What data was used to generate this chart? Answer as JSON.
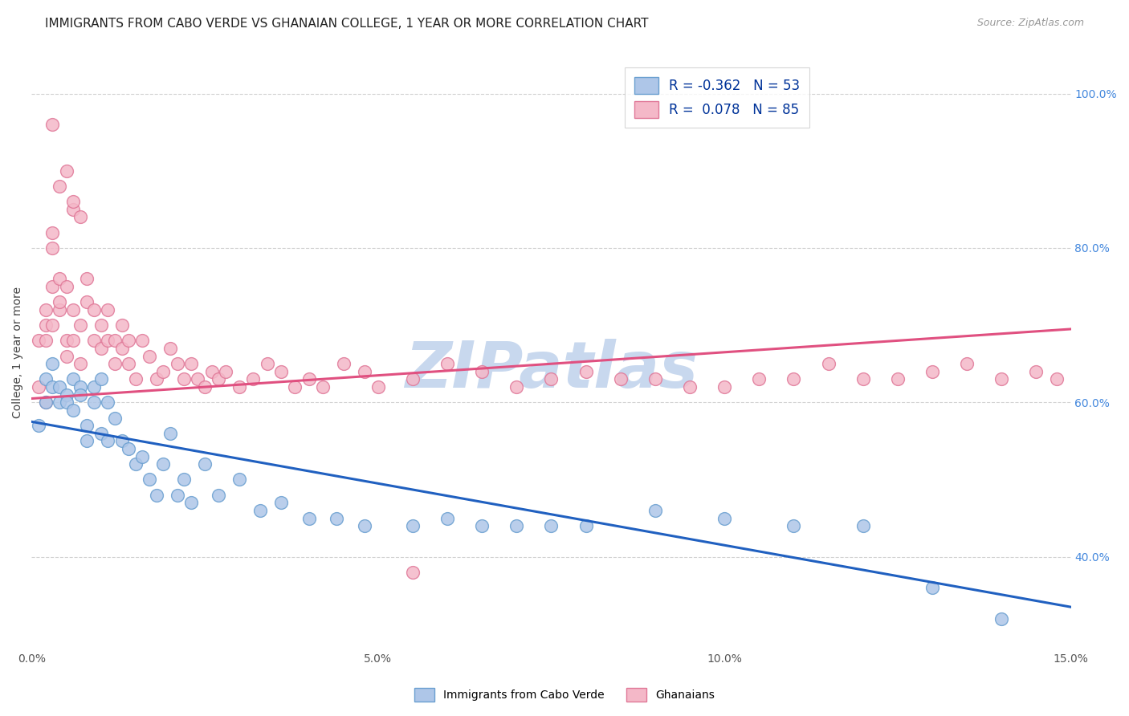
{
  "title": "IMMIGRANTS FROM CABO VERDE VS GHANAIAN COLLEGE, 1 YEAR OR MORE CORRELATION CHART",
  "source": "Source: ZipAtlas.com",
  "ylabel_label": "College, 1 year or more",
  "xlim": [
    0.0,
    0.15
  ],
  "ylim": [
    0.28,
    1.05
  ],
  "ytick_vals": [
    0.4,
    0.6,
    0.8,
    1.0
  ],
  "ytick_labels": [
    "40.0%",
    "60.0%",
    "80.0%",
    "100.0%"
  ],
  "xtick_vals": [
    0.0,
    0.05,
    0.1,
    0.15
  ],
  "xtick_labels": [
    "0.0%",
    "5.0%",
    "10.0%",
    "15.0%"
  ],
  "legend_label_cv": "R = -0.362   N = 53",
  "legend_label_gh": "R =  0.078   N = 85",
  "legend_r_color": "#003399",
  "cabo_verde_color": "#aec6e8",
  "cabo_verde_edge": "#6a9fd0",
  "ghanaian_color": "#f4b8c8",
  "ghanaian_edge": "#e07898",
  "cabo_verde_line_color": "#2060c0",
  "ghanaian_line_color": "#e05080",
  "watermark": "ZIPatlas",
  "watermark_color": "#c8d8ee",
  "cabo_verde_trend_x": [
    0.0,
    0.15
  ],
  "cabo_verde_trend_y": [
    0.575,
    0.335
  ],
  "ghanaian_trend_x": [
    0.0,
    0.15
  ],
  "ghanaian_trend_y": [
    0.605,
    0.695
  ],
  "background_color": "#ffffff",
  "grid_color": "#cccccc",
  "title_fontsize": 11,
  "axis_label_fontsize": 10,
  "tick_fontsize": 10,
  "source_fontsize": 9,
  "cabo_verde_x": [
    0.001,
    0.002,
    0.002,
    0.003,
    0.003,
    0.004,
    0.004,
    0.005,
    0.005,
    0.006,
    0.006,
    0.007,
    0.007,
    0.008,
    0.008,
    0.009,
    0.009,
    0.01,
    0.01,
    0.011,
    0.011,
    0.012,
    0.013,
    0.014,
    0.015,
    0.016,
    0.017,
    0.018,
    0.019,
    0.02,
    0.021,
    0.022,
    0.023,
    0.025,
    0.027,
    0.03,
    0.033,
    0.036,
    0.04,
    0.044,
    0.048,
    0.055,
    0.06,
    0.065,
    0.07,
    0.075,
    0.08,
    0.09,
    0.1,
    0.11,
    0.12,
    0.13,
    0.14
  ],
  "cabo_verde_y": [
    0.57,
    0.6,
    0.63,
    0.62,
    0.65,
    0.6,
    0.62,
    0.61,
    0.6,
    0.63,
    0.59,
    0.62,
    0.61,
    0.57,
    0.55,
    0.62,
    0.6,
    0.63,
    0.56,
    0.55,
    0.6,
    0.58,
    0.55,
    0.54,
    0.52,
    0.53,
    0.5,
    0.48,
    0.52,
    0.56,
    0.48,
    0.5,
    0.47,
    0.52,
    0.48,
    0.5,
    0.46,
    0.47,
    0.45,
    0.45,
    0.44,
    0.44,
    0.45,
    0.44,
    0.44,
    0.44,
    0.44,
    0.46,
    0.45,
    0.44,
    0.44,
    0.36,
    0.32
  ],
  "ghanaian_x": [
    0.001,
    0.001,
    0.002,
    0.002,
    0.002,
    0.003,
    0.003,
    0.003,
    0.004,
    0.004,
    0.004,
    0.005,
    0.005,
    0.006,
    0.006,
    0.006,
    0.007,
    0.007,
    0.008,
    0.008,
    0.009,
    0.009,
    0.01,
    0.01,
    0.011,
    0.011,
    0.012,
    0.012,
    0.013,
    0.013,
    0.014,
    0.014,
    0.015,
    0.016,
    0.017,
    0.018,
    0.019,
    0.02,
    0.021,
    0.022,
    0.023,
    0.024,
    0.025,
    0.026,
    0.027,
    0.028,
    0.03,
    0.032,
    0.034,
    0.036,
    0.038,
    0.04,
    0.042,
    0.045,
    0.048,
    0.05,
    0.055,
    0.06,
    0.065,
    0.07,
    0.075,
    0.08,
    0.085,
    0.09,
    0.095,
    0.1,
    0.105,
    0.11,
    0.115,
    0.12,
    0.125,
    0.13,
    0.135,
    0.14,
    0.145,
    0.148,
    0.005,
    0.006,
    0.007,
    0.003,
    0.002,
    0.003,
    0.004,
    0.005,
    0.055
  ],
  "ghanaian_y": [
    0.68,
    0.62,
    0.72,
    0.7,
    0.68,
    0.75,
    0.8,
    0.82,
    0.72,
    0.76,
    0.88,
    0.68,
    0.75,
    0.72,
    0.68,
    0.85,
    0.7,
    0.65,
    0.73,
    0.76,
    0.68,
    0.72,
    0.7,
    0.67,
    0.68,
    0.72,
    0.65,
    0.68,
    0.67,
    0.7,
    0.65,
    0.68,
    0.63,
    0.68,
    0.66,
    0.63,
    0.64,
    0.67,
    0.65,
    0.63,
    0.65,
    0.63,
    0.62,
    0.64,
    0.63,
    0.64,
    0.62,
    0.63,
    0.65,
    0.64,
    0.62,
    0.63,
    0.62,
    0.65,
    0.64,
    0.62,
    0.63,
    0.65,
    0.64,
    0.62,
    0.63,
    0.64,
    0.63,
    0.63,
    0.62,
    0.62,
    0.63,
    0.63,
    0.65,
    0.63,
    0.63,
    0.64,
    0.65,
    0.63,
    0.64,
    0.63,
    0.9,
    0.86,
    0.84,
    0.96,
    0.6,
    0.7,
    0.73,
    0.66,
    0.38
  ]
}
